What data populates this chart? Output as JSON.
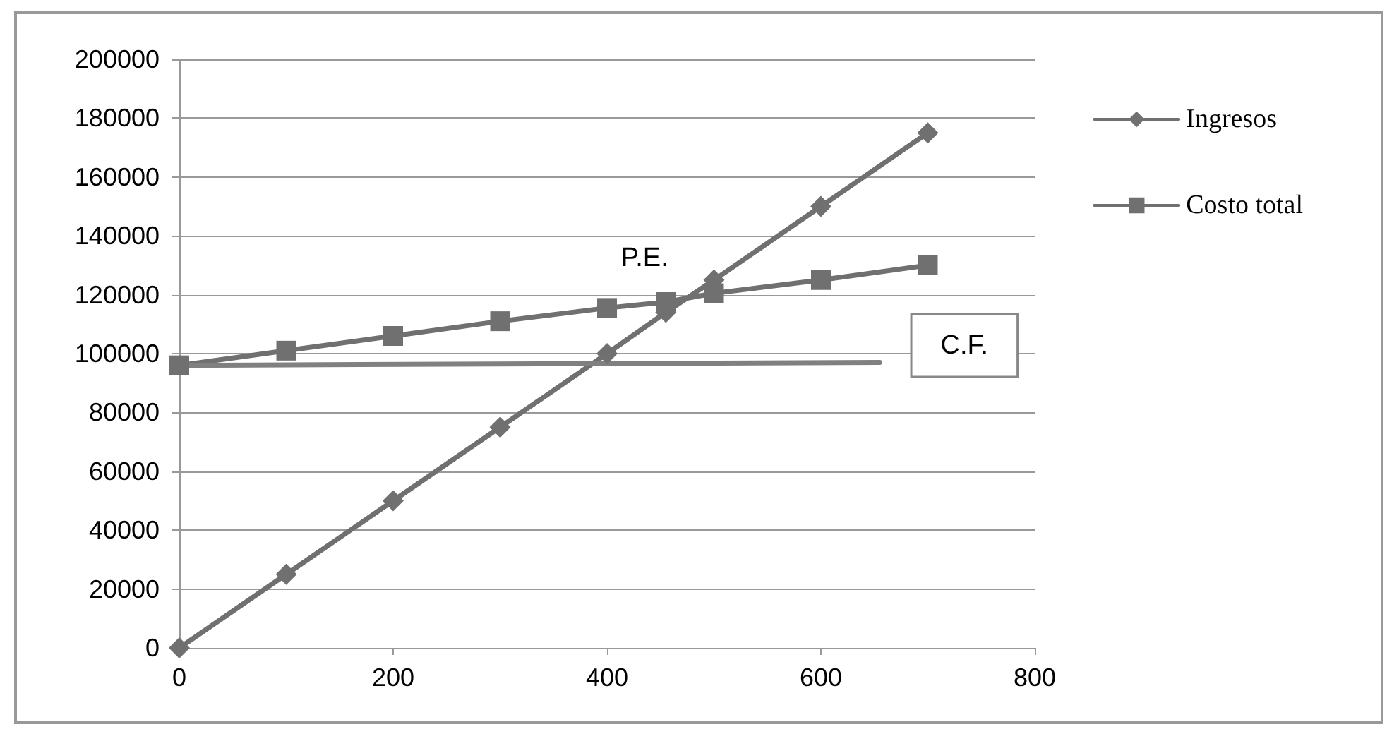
{
  "chart_data": {
    "type": "line",
    "xlim": [
      0,
      800
    ],
    "xticks": [
      0,
      200,
      400,
      600,
      800
    ],
    "ylim": [
      0,
      200000
    ],
    "yticks": [
      0,
      20000,
      40000,
      60000,
      80000,
      100000,
      120000,
      140000,
      160000,
      180000,
      200000
    ],
    "grid": "y",
    "legend": "right",
    "series": [
      {
        "name": "Ingresos",
        "color": "#707070",
        "marker": "diamond",
        "x": [
          0,
          100,
          200,
          300,
          400,
          455,
          500,
          600,
          700
        ],
        "values": [
          0,
          25000,
          50000,
          75000,
          100000,
          114000,
          125000,
          150000,
          175000
        ]
      },
      {
        "name": "Costo total",
        "color": "#707070",
        "marker": "square",
        "x": [
          0,
          100,
          200,
          300,
          400,
          455,
          500,
          600,
          700
        ],
        "values": [
          96000,
          101000,
          106000,
          111000,
          115500,
          117500,
          120500,
          125000,
          130000
        ]
      },
      {
        "color": "#808080",
        "marker": "none",
        "x": [
          0,
          655
        ],
        "values": [
          96000,
          97000
        ]
      }
    ],
    "annotations": [
      {
        "text": "P.E.",
        "x": 455,
        "y": 114000
      },
      {
        "text": "C.F.",
        "x": 655,
        "y": 97000
      }
    ]
  }
}
